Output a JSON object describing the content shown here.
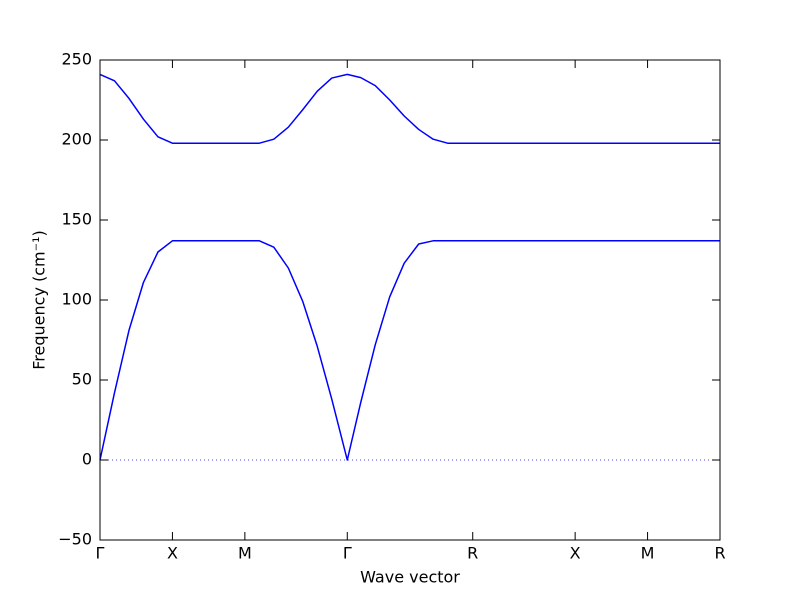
{
  "chart_data": {
    "type": "line",
    "xlabel": "Wave vector",
    "ylabel": "Frequency (cm⁻¹)",
    "x": [
      0,
      0.1,
      0.2,
      0.3,
      0.4,
      0.5,
      0.75,
      1.0,
      1.1,
      1.2,
      1.3,
      1.4,
      1.5,
      1.6,
      1.707,
      1.8,
      1.9,
      2.0,
      2.1,
      2.2,
      2.3,
      2.4,
      2.573,
      3.28,
      3.78,
      4.28
    ],
    "series": [
      {
        "color": "#0000ff",
        "values": [
          0,
          42,
          81,
          111,
          130,
          137,
          137,
          137,
          137,
          133,
          120,
          99,
          71,
          38,
          0,
          36,
          72,
          102,
          123,
          135,
          137,
          137,
          137,
          137,
          137,
          137
        ]
      },
      {
        "color": "#0000ff",
        "values": [
          241,
          237,
          226,
          213,
          202,
          198,
          198,
          198,
          198,
          200.5,
          208,
          219,
          230.5,
          238.7,
          241,
          239,
          234,
          225,
          215,
          206.6,
          200.5,
          198,
          198,
          198,
          198,
          198
        ]
      }
    ],
    "xlim": [
      0,
      4.28
    ],
    "ylim": [
      -50,
      250
    ],
    "xticks": [
      {
        "value": 0,
        "label": "Γ"
      },
      {
        "value": 0.5,
        "label": "X"
      },
      {
        "value": 1.0,
        "label": "M"
      },
      {
        "value": 1.707,
        "label": "Γ"
      },
      {
        "value": 2.573,
        "label": "R"
      },
      {
        "value": 3.28,
        "label": "X"
      },
      {
        "value": 3.78,
        "label": "M"
      },
      {
        "value": 4.28,
        "label": "R"
      }
    ],
    "yticks": [
      {
        "value": -50,
        "label": "−50"
      },
      0,
      50,
      100,
      150,
      200,
      250
    ],
    "reference_line": 0,
    "grid": false
  }
}
